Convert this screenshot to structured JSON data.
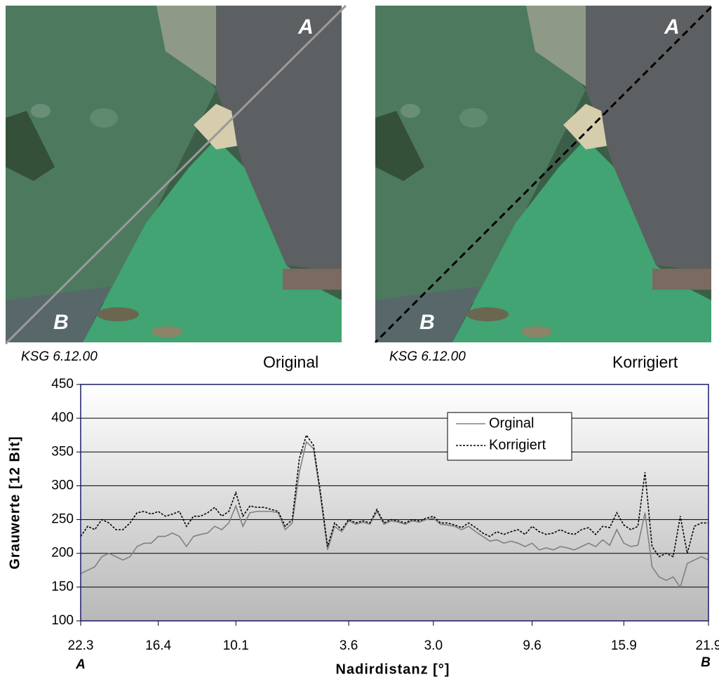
{
  "images": [
    {
      "caption": "KSG 6.12.00",
      "label": "Original",
      "point_a": "A",
      "point_b": "B"
    },
    {
      "caption": "KSG 6.12.00",
      "label": "Korrigiert",
      "point_a": "A",
      "point_b": "B"
    }
  ],
  "chart_data": {
    "type": "line",
    "ylabel": "Grauwerte [12 Bit]",
    "xlabel": "Nadirdistanz [°]",
    "x_start_label": "A",
    "x_end_label": "B",
    "categories": [
      "22.3",
      null,
      null,
      null,
      null,
      null,
      null,
      null,
      null,
      null,
      null,
      "16.4",
      null,
      null,
      null,
      null,
      null,
      null,
      null,
      null,
      null,
      null,
      "10.1",
      null,
      null,
      null,
      null,
      null,
      null,
      null,
      null,
      null,
      null,
      null,
      null,
      null,
      null,
      null,
      "3.6",
      null,
      null,
      null,
      null,
      null,
      null,
      null,
      null,
      null,
      null,
      null,
      "3.0",
      null,
      null,
      null,
      null,
      null,
      null,
      null,
      null,
      null,
      null,
      null,
      null,
      null,
      "9.6",
      null,
      null,
      null,
      null,
      null,
      null,
      null,
      null,
      null,
      null,
      null,
      null,
      "15.9",
      null,
      null,
      null,
      null,
      null,
      null,
      null,
      null,
      null,
      null,
      null,
      "21.9"
    ],
    "series": [
      {
        "name": "Orginal",
        "color": "#808080",
        "linestyle": "solid",
        "values": [
          170,
          175,
          180,
          195,
          200,
          195,
          190,
          195,
          210,
          215,
          215,
          225,
          225,
          230,
          225,
          210,
          225,
          228,
          230,
          240,
          235,
          245,
          270,
          240,
          260,
          262,
          262,
          262,
          260,
          235,
          245,
          320,
          365,
          355,
          285,
          205,
          240,
          232,
          248,
          243,
          246,
          243,
          262,
          243,
          248,
          246,
          243,
          248,
          246,
          250,
          252,
          243,
          242,
          240,
          235,
          240,
          232,
          225,
          218,
          220,
          215,
          218,
          215,
          210,
          215,
          205,
          208,
          205,
          210,
          208,
          205,
          210,
          215,
          210,
          220,
          212,
          235,
          215,
          210,
          212,
          260,
          180,
          165,
          160,
          165,
          150,
          185,
          190,
          195,
          190
        ]
      },
      {
        "name": "Korrigiert",
        "color": "#000000",
        "linestyle": "dashed",
        "values": [
          225,
          240,
          235,
          250,
          245,
          235,
          235,
          245,
          260,
          262,
          258,
          262,
          255,
          258,
          262,
          240,
          255,
          255,
          260,
          268,
          255,
          262,
          290,
          255,
          270,
          268,
          268,
          265,
          262,
          240,
          250,
          340,
          375,
          360,
          290,
          210,
          245,
          235,
          250,
          245,
          248,
          245,
          265,
          245,
          250,
          248,
          245,
          250,
          248,
          252,
          255,
          245,
          245,
          242,
          238,
          245,
          238,
          230,
          225,
          232,
          228,
          232,
          235,
          228,
          240,
          232,
          228,
          230,
          235,
          230,
          228,
          235,
          238,
          228,
          240,
          238,
          260,
          242,
          235,
          240,
          320,
          210,
          195,
          200,
          195,
          255,
          200,
          240,
          245,
          245
        ]
      }
    ],
    "ylim": [
      100,
      450
    ],
    "yticks": [
      100,
      150,
      200,
      250,
      300,
      350,
      400,
      450
    ],
    "grid": true
  }
}
